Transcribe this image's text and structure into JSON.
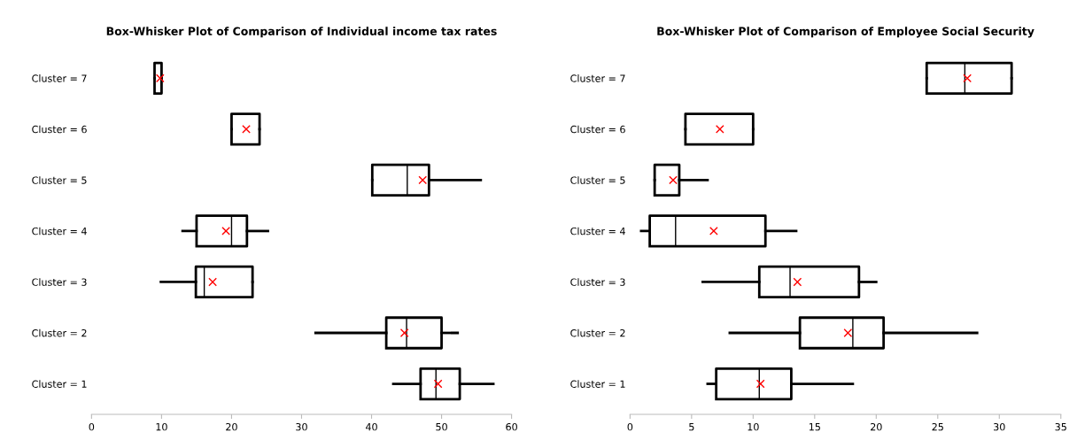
{
  "chart_data": [
    {
      "type": "box",
      "orientation": "horizontal",
      "title": "Box-Whisker Plot of Comparison of Individual income tax rates",
      "categories": [
        "Cluster = 7",
        "Cluster = 6",
        "Cluster = 5",
        "Cluster = 4",
        "Cluster = 3",
        "Cluster = 2",
        "Cluster = 1"
      ],
      "boxes": [
        {
          "low": 9.0,
          "q1": 9.0,
          "median": 10.0,
          "q3": 10.0,
          "high": 10.0,
          "mean": 9.8
        },
        {
          "low": 20.0,
          "q1": 20.0,
          "median": 20.0,
          "q3": 24.0,
          "high": 24.0,
          "mean": 22.1
        },
        {
          "low": 40.1,
          "q1": 40.1,
          "median": 45.1,
          "q3": 48.2,
          "high": 55.6,
          "mean": 47.3
        },
        {
          "low": 13.0,
          "q1": 15.0,
          "median": 20.0,
          "q3": 22.2,
          "high": 25.2,
          "mean": 19.2
        },
        {
          "low": 9.9,
          "q1": 14.9,
          "median": 16.1,
          "q3": 23.0,
          "high": 23.0,
          "mean": 17.3
        },
        {
          "low": 32.0,
          "q1": 42.1,
          "median": 45.0,
          "q3": 50.0,
          "high": 52.3,
          "mean": 44.7
        },
        {
          "low": 43.1,
          "q1": 47.0,
          "median": 49.2,
          "q3": 52.6,
          "high": 57.4,
          "mean": 49.5
        }
      ],
      "color": "#000000",
      "xlim": [
        0,
        60
      ],
      "xticks": [
        0,
        10,
        20,
        30,
        40,
        50,
        60
      ],
      "grid": false,
      "legend": false
    },
    {
      "type": "box",
      "orientation": "horizontal",
      "title": "Box-Whisker Plot of Comparison of Employee Social Security",
      "categories": [
        "Cluster = 7",
        "Cluster = 6",
        "Cluster = 5",
        "Cluster = 4",
        "Cluster = 3",
        "Cluster = 2",
        "Cluster = 1"
      ],
      "boxes": [
        {
          "low": 24.1,
          "q1": 24.1,
          "median": 27.2,
          "q3": 31.0,
          "high": 31.0,
          "mean": 27.4
        },
        {
          "low": 4.5,
          "q1": 4.5,
          "median": 4.5,
          "q3": 10.0,
          "high": 10.0,
          "mean": 7.3
        },
        {
          "low": 2.0,
          "q1": 2.0,
          "median": 2.0,
          "q3": 4.0,
          "high": 6.3,
          "mean": 3.5
        },
        {
          "low": 0.9,
          "q1": 1.6,
          "median": 3.7,
          "q3": 11.0,
          "high": 13.5,
          "mean": 6.8
        },
        {
          "low": 5.9,
          "q1": 10.5,
          "median": 13.0,
          "q3": 18.6,
          "high": 20.0,
          "mean": 13.6
        },
        {
          "low": 8.1,
          "q1": 13.8,
          "median": 18.1,
          "q3": 20.6,
          "high": 28.2,
          "mean": 17.7
        },
        {
          "low": 6.3,
          "q1": 7.0,
          "median": 10.5,
          "q3": 13.1,
          "high": 18.1,
          "mean": 10.6
        }
      ],
      "color": "#000000",
      "xlim": [
        0,
        35
      ],
      "xticks": [
        0,
        5,
        10,
        15,
        20,
        25,
        30,
        35
      ],
      "grid": false,
      "legend": false
    }
  ]
}
